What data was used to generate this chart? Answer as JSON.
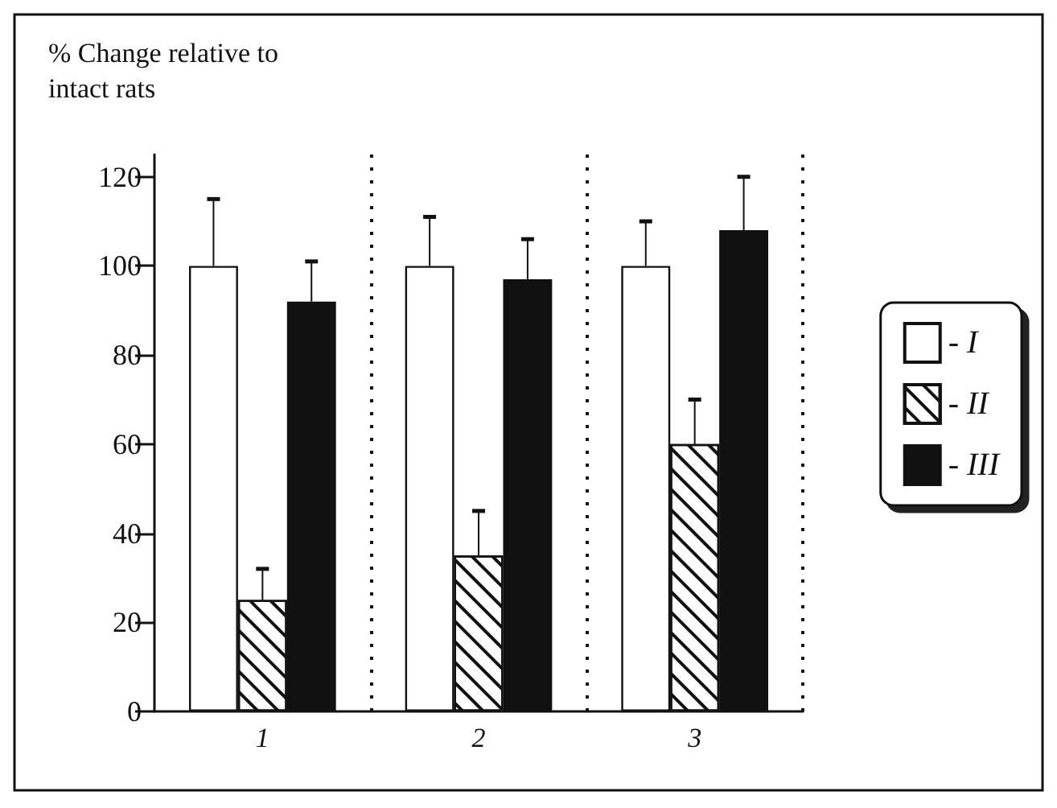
{
  "chart_data": {
    "type": "bar",
    "ylabel": "% Change relative to intact rats",
    "categories": [
      "1",
      "2",
      "3"
    ],
    "series": [
      {
        "name": "- I",
        "color": "#ffffff",
        "values": [
          100,
          100,
          100
        ],
        "errors": [
          [
            100,
            115
          ],
          [
            100,
            111
          ],
          [
            100,
            110
          ]
        ]
      },
      {
        "name": "- II",
        "color": "#ffffff",
        "values": [
          25,
          35,
          60
        ],
        "errors": [
          [
            25,
            32
          ],
          [
            35,
            45
          ],
          [
            60,
            70
          ]
        ]
      },
      {
        "name": "- III",
        "color": "#111111",
        "values": [
          92,
          97,
          108
        ],
        "errors": [
          [
            92,
            101
          ],
          [
            97,
            106
          ],
          [
            108,
            120
          ]
        ]
      }
    ],
    "ylim": [
      0,
      125
    ],
    "yticks": [
      0,
      20,
      40,
      60,
      80,
      100,
      120
    ],
    "grid": "x",
    "legend": "right"
  }
}
